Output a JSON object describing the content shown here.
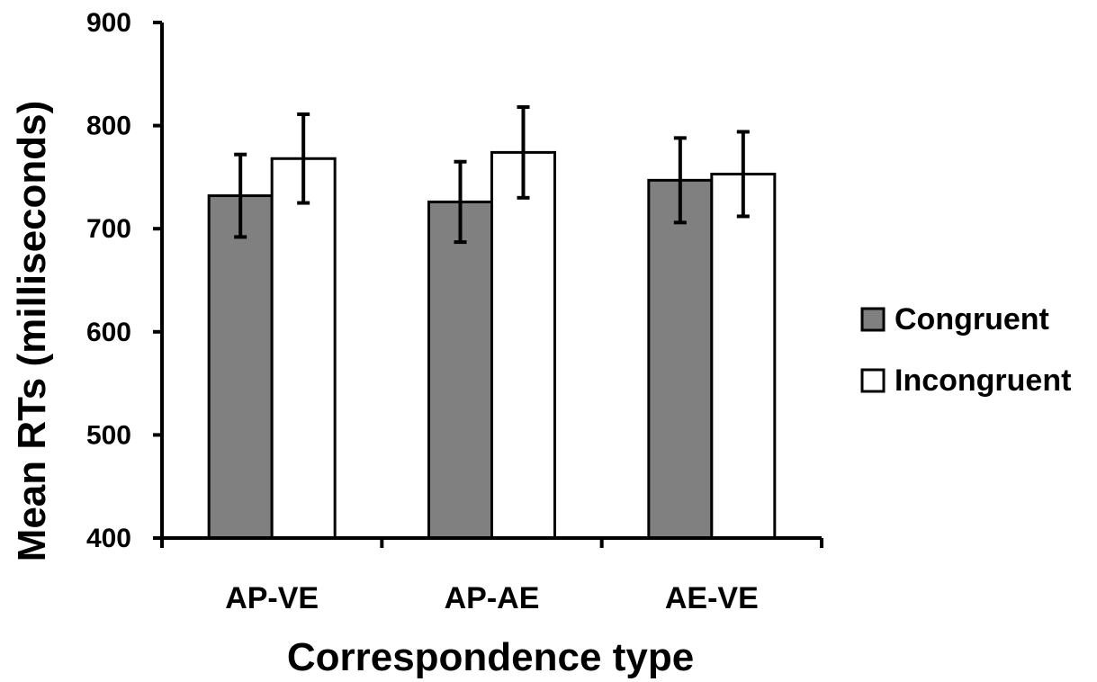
{
  "chart_data": {
    "type": "bar",
    "title": "",
    "xlabel": "Correspondence type",
    "ylabel": "Mean RTs (milliseconds)",
    "ylim": [
      400,
      900
    ],
    "yticks": [
      400,
      500,
      600,
      700,
      800,
      900
    ],
    "categories": [
      "AP-VE",
      "AP-AE",
      "AE-VE"
    ],
    "series": [
      {
        "name": "Congruent",
        "color": "#808080",
        "values": [
          732,
          726,
          747
        ],
        "errors": [
          40,
          39,
          41
        ]
      },
      {
        "name": "Incongruent",
        "color": "#ffffff",
        "values": [
          768,
          774,
          753
        ],
        "errors": [
          43,
          44,
          41
        ]
      }
    ],
    "grid": false,
    "legend_position": "right"
  }
}
